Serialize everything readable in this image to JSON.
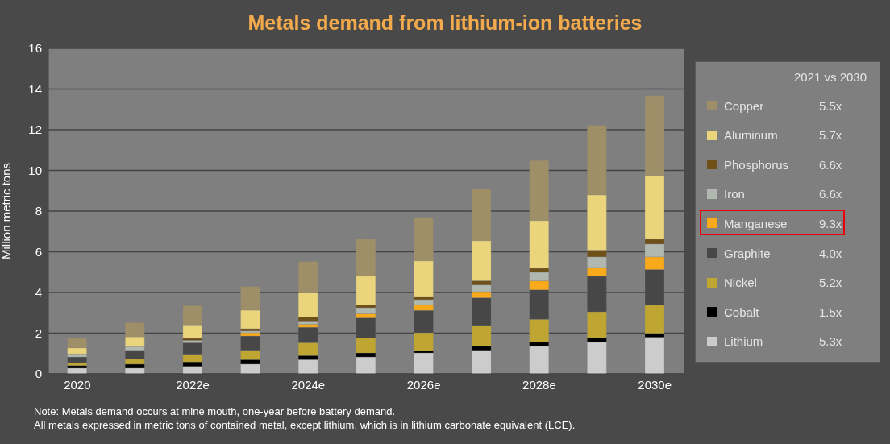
{
  "chart_data": {
    "type": "bar",
    "title": "Metals demand from lithium-ion batteries",
    "ylabel": "Million metric tons",
    "legend_title": "2021 vs 2030",
    "categories": [
      "2020",
      null,
      "2022e",
      null,
      "2024e",
      null,
      "2026e",
      null,
      "2028e",
      null,
      "2030e"
    ],
    "series": [
      {
        "name": "Lithium",
        "color": "#cccccc",
        "values": [
          0.28,
          0.28,
          0.37,
          0.48,
          0.7,
          0.83,
          1.03,
          1.16,
          1.36,
          1.56,
          1.8
        ]
      },
      {
        "name": "Cobalt",
        "color": "#000000",
        "values": [
          0.13,
          0.2,
          0.22,
          0.22,
          0.2,
          0.2,
          0.11,
          0.2,
          0.2,
          0.22,
          0.19
        ]
      },
      {
        "name": "Nickel",
        "color": "#bfa632",
        "values": [
          0.14,
          0.25,
          0.37,
          0.46,
          0.63,
          0.73,
          0.88,
          1.02,
          1.12,
          1.27,
          1.39
        ]
      },
      {
        "name": "Graphite",
        "color": "#474747",
        "values": [
          0.28,
          0.43,
          0.57,
          0.7,
          0.76,
          0.99,
          1.1,
          1.36,
          1.45,
          1.75,
          1.75
        ]
      },
      {
        "name": "Manganese",
        "color": "#f9aa1a",
        "values": [
          null,
          null,
          null,
          0.16,
          0.15,
          0.2,
          0.28,
          0.3,
          0.44,
          0.43,
          0.62
        ]
      },
      {
        "name": "Iron",
        "color": "#b0b8b0",
        "values": [
          0.15,
          0.18,
          0.12,
          0.09,
          0.16,
          0.3,
          0.25,
          0.33,
          0.42,
          0.52,
          0.63
        ]
      },
      {
        "name": "Phosphorus",
        "color": "#6e5018",
        "values": [
          null,
          null,
          0.1,
          0.11,
          0.19,
          0.13,
          0.15,
          0.2,
          0.2,
          0.33,
          0.24
        ]
      },
      {
        "name": "Aluminum",
        "color": "#ead47c",
        "values": [
          0.3,
          0.48,
          0.66,
          0.91,
          1.21,
          1.43,
          1.76,
          1.98,
          2.35,
          2.72,
          3.13
        ]
      },
      {
        "name": "Copper",
        "color": "#9e8f68",
        "values": [
          0.49,
          0.7,
          0.94,
          1.16,
          1.52,
          1.81,
          2.13,
          2.54,
          2.95,
          3.42,
          3.92
        ]
      }
    ],
    "stacked": true,
    "ylim": [
      0,
      16
    ],
    "yticks": [
      0,
      2,
      4,
      6,
      8,
      10,
      12,
      14,
      16
    ],
    "grid": "y",
    "legend": "right",
    "annotations": [
      "5.3x",
      "1.5x",
      "5.2x",
      "4.0x",
      "9.3x",
      "6.6x",
      "6.6x",
      "5.7x",
      "5.5x",
      "Note: Metals demand occurs at mine mouth, one-year before battery demand.",
      "All metals expressed in metric tons of contained metal, except lithium, which is in lithium carbonate equivalent (LCE)."
    ]
  }
}
